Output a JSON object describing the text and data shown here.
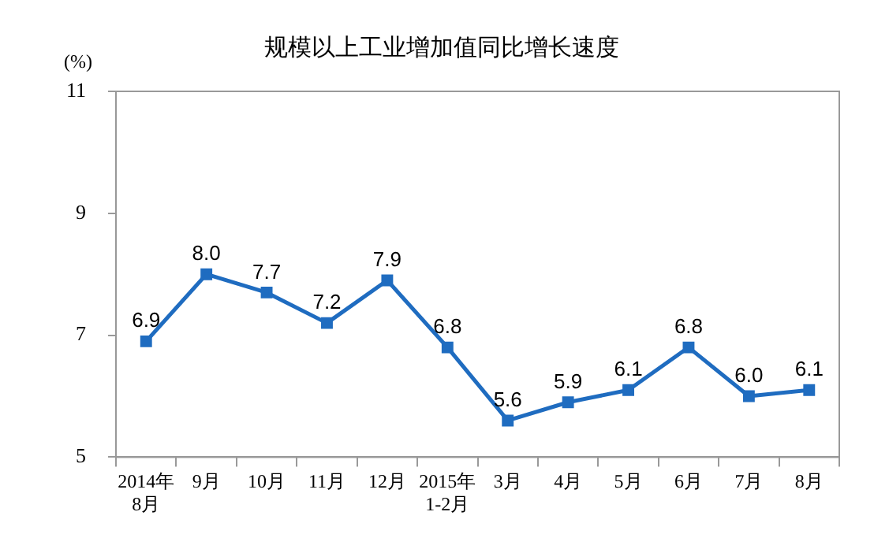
{
  "chart_data": {
    "type": "line",
    "title": "规模以上工业增加值同比增长速度",
    "ylabel": "(%)",
    "categories": [
      "2014年\n8月",
      "9月",
      "10月",
      "11月",
      "12月",
      "2015年\n1-2月",
      "3月",
      "4月",
      "5月",
      "6月",
      "7月",
      "8月"
    ],
    "series": [
      {
        "color": "#1f6cc0",
        "values": [
          6.9,
          8.0,
          7.7,
          7.2,
          7.9,
          6.8,
          5.6,
          5.9,
          6.1,
          6.8,
          6.0,
          6.1
        ],
        "value_labels": [
          "6.9",
          "8.0",
          "7.7",
          "7.2",
          "7.9",
          "6.8",
          "5.6",
          "5.9",
          "6.1",
          "6.8",
          "6.0",
          "6.1"
        ]
      }
    ],
    "ylim": [
      5,
      11
    ],
    "yticks": [
      5,
      7,
      9,
      11
    ],
    "grid": false,
    "legend": false,
    "marker": "square",
    "line_style": "solid"
  }
}
